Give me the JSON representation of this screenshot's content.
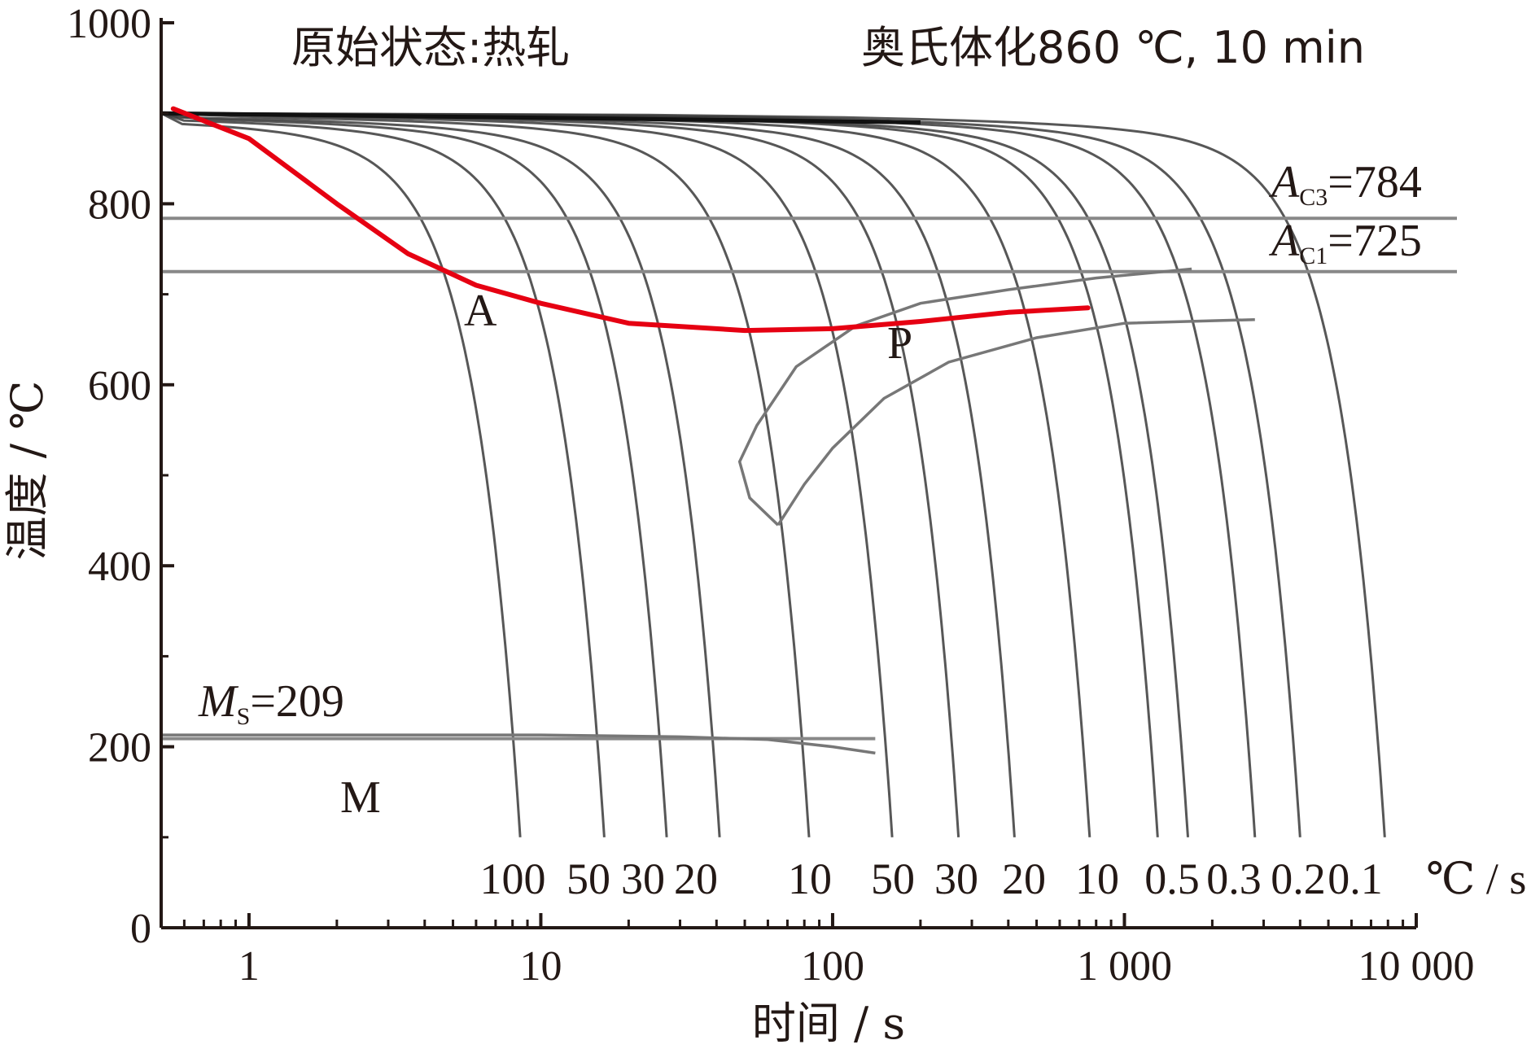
{
  "chart_data": {
    "type": "line",
    "title_left": "原始状态:热轧",
    "title_right": "奥氏体化860 ℃, 10 min",
    "xlabel": "时间 / s",
    "ylabel": "温度 / ℃",
    "x_scale": "log",
    "xlim": [
      0.5,
      10000
    ],
    "ylim": [
      0,
      1000
    ],
    "x_ticks": [
      {
        "value": 1,
        "label": "1"
      },
      {
        "value": 10,
        "label": "10"
      },
      {
        "value": 100,
        "label": "100"
      },
      {
        "value": 1000,
        "label": "1 000"
      },
      {
        "value": 10000,
        "label": "10 000"
      }
    ],
    "y_ticks": [
      {
        "value": 0,
        "label": "0"
      },
      {
        "value": 200,
        "label": "200"
      },
      {
        "value": 400,
        "label": "400"
      },
      {
        "value": 600,
        "label": "600"
      },
      {
        "value": 800,
        "label": "800"
      },
      {
        "value": 1000,
        "label": "1000"
      }
    ],
    "critical_temps": [
      {
        "name": "AC3",
        "symbol": "A",
        "subscript": "C3",
        "value": 784,
        "text": "=784"
      },
      {
        "name": "AC1",
        "symbol": "A",
        "subscript": "C1",
        "value": 725,
        "text": "=725"
      },
      {
        "name": "Ms",
        "symbol": "M",
        "subscript": "S",
        "value": 209,
        "text": "=209"
      }
    ],
    "phase_labels": [
      "A",
      "P",
      "M"
    ],
    "cooling_rate_unit": "℃ / s",
    "cooling_rate_labels": [
      "100",
      "50",
      "30",
      "20",
      "10",
      "50",
      "30",
      "20",
      "10",
      "0.5",
      "0.3",
      "0.2",
      "0.1"
    ],
    "cooling_curves": [
      {
        "end_x": 8.5,
        "end_y": 100
      },
      {
        "end_x": 16.5,
        "end_y": 100
      },
      {
        "end_x": 27,
        "end_y": 100
      },
      {
        "end_x": 41,
        "end_y": 100
      },
      {
        "end_x": 83,
        "end_y": 100
      },
      {
        "end_x": 160,
        "end_y": 100
      },
      {
        "end_x": 270,
        "end_y": 100
      },
      {
        "end_x": 420,
        "end_y": 100
      },
      {
        "end_x": 760,
        "end_y": 100
      },
      {
        "end_x": 1300,
        "end_y": 100
      },
      {
        "end_x": 1650,
        "end_y": 100
      },
      {
        "end_x": 2800,
        "end_y": 100
      },
      {
        "end_x": 4000,
        "end_y": 100
      },
      {
        "end_x": 7800,
        "end_y": 100
      }
    ],
    "highlight_curve": {
      "color": "#e60012",
      "points": [
        [
          0.55,
          905
        ],
        [
          1,
          872
        ],
        [
          2,
          800
        ],
        [
          3.5,
          745
        ],
        [
          6,
          710
        ],
        [
          10,
          690
        ],
        [
          20,
          668
        ],
        [
          50,
          660
        ],
        [
          100,
          662
        ],
        [
          200,
          670
        ],
        [
          400,
          680
        ],
        [
          750,
          685
        ]
      ]
    },
    "pearlite_region": {
      "start": [
        [
          1700,
          728
        ],
        [
          800,
          718
        ],
        [
          400,
          705
        ],
        [
          200,
          690
        ],
        [
          120,
          665
        ],
        [
          75,
          620
        ],
        [
          55,
          555
        ],
        [
          48,
          515
        ],
        [
          52,
          475
        ],
        [
          65,
          445
        ]
      ],
      "finish": [
        [
          2800,
          672
        ],
        [
          1000,
          668
        ],
        [
          500,
          652
        ],
        [
          250,
          625
        ],
        [
          150,
          585
        ],
        [
          100,
          530
        ],
        [
          80,
          490
        ],
        [
          65,
          445
        ]
      ]
    },
    "martensite_start_line": [
      [
        0.5,
        213
      ],
      [
        10,
        213
      ],
      [
        30,
        211
      ],
      [
        60,
        208
      ],
      [
        100,
        200
      ],
      [
        140,
        193
      ]
    ]
  }
}
